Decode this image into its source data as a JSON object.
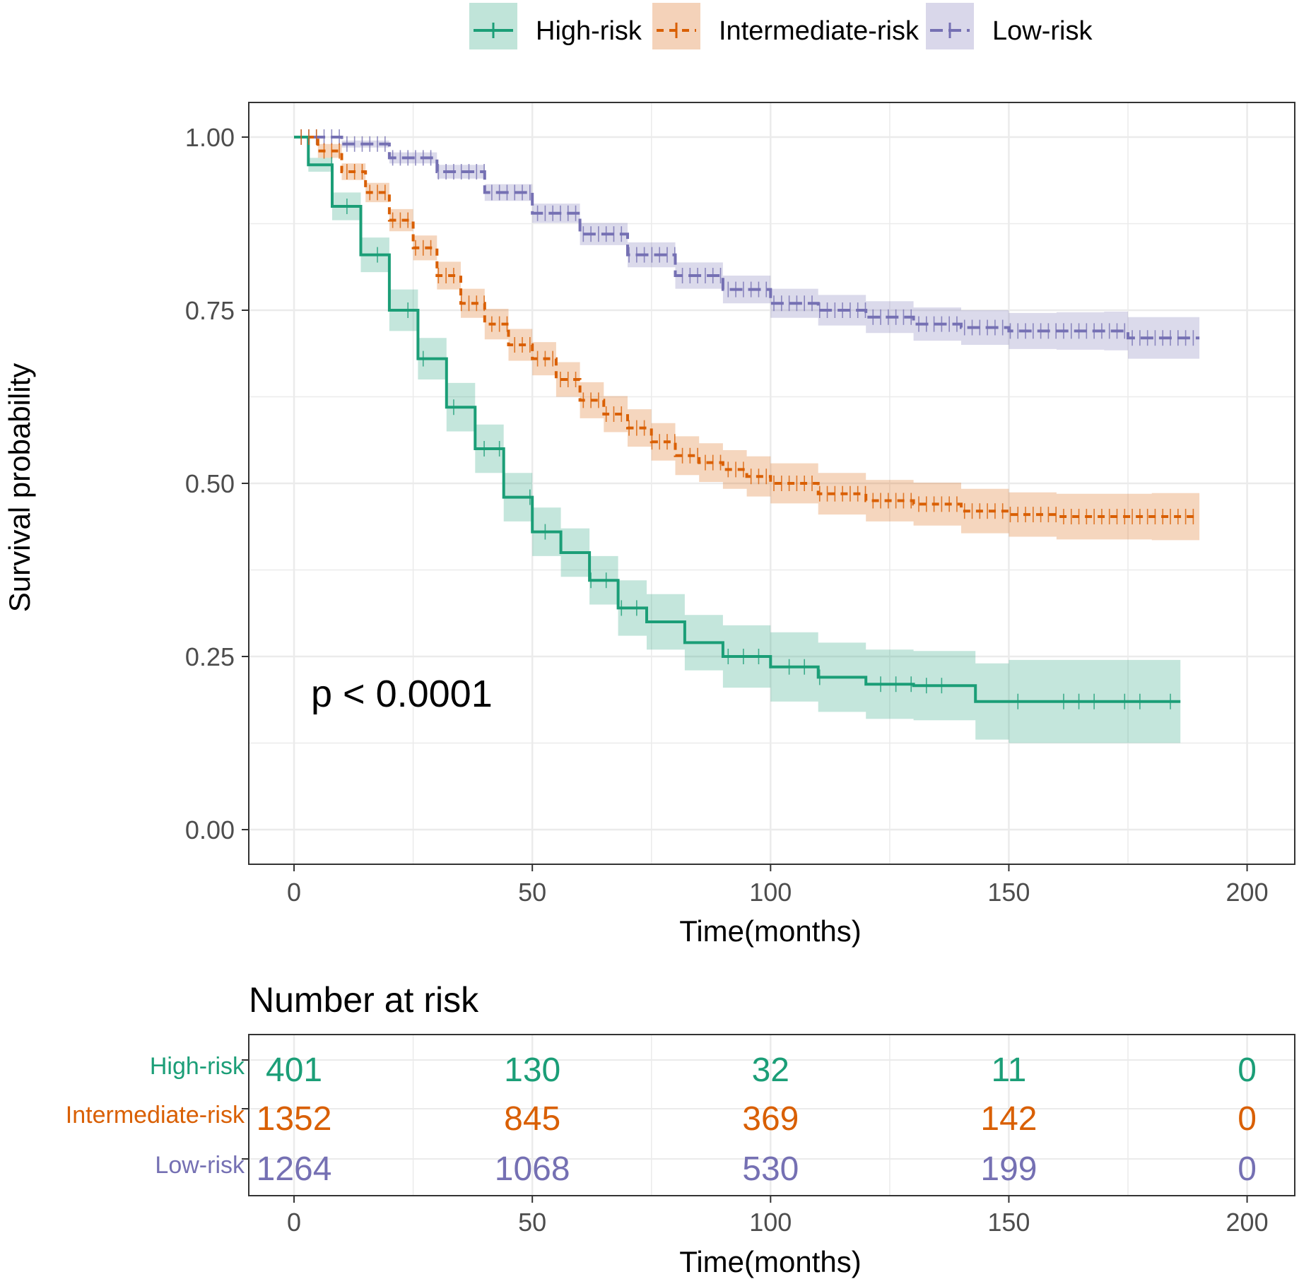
{
  "colors": {
    "high": "#1b9e77",
    "intermediate": "#d95f02",
    "low": "#7570b3",
    "grid": "#ebebeb",
    "axis_text": "#4d4d4d",
    "text": "#000000"
  },
  "legend": {
    "items": [
      {
        "label": "High-risk",
        "series": "high",
        "linetype": "solid"
      },
      {
        "label": "Intermediate-risk",
        "series": "intermediate",
        "linetype": "dashed"
      },
      {
        "label": "Low-risk",
        "series": "low",
        "linetype": "longdash"
      }
    ]
  },
  "chart_data": [
    {
      "type": "line",
      "subtype": "kaplan-meier",
      "xlabel": "Time(months)",
      "ylabel": "Survival probability",
      "xlim": [
        -9.5,
        210
      ],
      "ylim": [
        -0.05,
        1.05
      ],
      "x_ticks": [
        0,
        50,
        100,
        150,
        200
      ],
      "y_ticks": [
        0.0,
        0.25,
        0.5,
        0.75,
        1.0
      ],
      "y_tick_labels": [
        "0.00",
        "0.25",
        "0.50",
        "0.75",
        "1.00"
      ],
      "grid": true,
      "annotation": "p < 0.0001",
      "series": [
        {
          "key": "high",
          "name": "High-risk",
          "linetype": "solid",
          "x": [
            0,
            3,
            8,
            14,
            20,
            26,
            32,
            38,
            44,
            50,
            56,
            62,
            68,
            74,
            82,
            90,
            100,
            110,
            120,
            130,
            141,
            143,
            150,
            160,
            170,
            186
          ],
          "y": [
            1.0,
            0.96,
            0.9,
            0.83,
            0.75,
            0.68,
            0.61,
            0.55,
            0.48,
            0.43,
            0.4,
            0.36,
            0.32,
            0.3,
            0.27,
            0.25,
            0.235,
            0.22,
            0.21,
            0.208,
            0.208,
            0.185,
            0.185,
            0.185,
            0.185,
            0.185
          ],
          "ci_halfwidth": [
            0.0,
            0.01,
            0.02,
            0.025,
            0.03,
            0.03,
            0.035,
            0.035,
            0.035,
            0.035,
            0.035,
            0.035,
            0.04,
            0.04,
            0.04,
            0.045,
            0.05,
            0.05,
            0.05,
            0.05,
            0.05,
            0.055,
            0.06,
            0.06,
            0.06,
            0.065
          ]
        },
        {
          "key": "intermediate",
          "name": "Intermediate-risk",
          "linetype": "dashed",
          "x": [
            0,
            5,
            10,
            15,
            20,
            25,
            30,
            35,
            40,
            45,
            50,
            55,
            60,
            65,
            70,
            75,
            80,
            85,
            90,
            95,
            100,
            110,
            120,
            130,
            140,
            150,
            160,
            170,
            180,
            190
          ],
          "y": [
            1.0,
            0.98,
            0.95,
            0.92,
            0.88,
            0.84,
            0.8,
            0.76,
            0.73,
            0.7,
            0.68,
            0.65,
            0.62,
            0.6,
            0.58,
            0.56,
            0.54,
            0.53,
            0.52,
            0.51,
            0.5,
            0.485,
            0.475,
            0.47,
            0.46,
            0.455,
            0.452,
            0.452,
            0.452,
            0.452
          ],
          "ci_halfwidth": [
            0.0,
            0.01,
            0.012,
            0.014,
            0.016,
            0.018,
            0.02,
            0.021,
            0.022,
            0.023,
            0.024,
            0.025,
            0.026,
            0.026,
            0.027,
            0.027,
            0.028,
            0.028,
            0.028,
            0.029,
            0.029,
            0.03,
            0.03,
            0.031,
            0.032,
            0.032,
            0.033,
            0.033,
            0.034,
            0.034
          ]
        },
        {
          "key": "low",
          "name": "Low-risk",
          "linetype": "longdash",
          "x": [
            0,
            10,
            20,
            30,
            40,
            50,
            60,
            70,
            80,
            90,
            100,
            110,
            120,
            130,
            140,
            150,
            160,
            170,
            175,
            190
          ],
          "y": [
            1.0,
            0.99,
            0.97,
            0.95,
            0.92,
            0.89,
            0.86,
            0.83,
            0.8,
            0.78,
            0.76,
            0.75,
            0.74,
            0.73,
            0.725,
            0.72,
            0.72,
            0.72,
            0.71,
            0.71
          ],
          "ci_halfwidth": [
            0.0,
            0.005,
            0.008,
            0.01,
            0.012,
            0.014,
            0.016,
            0.018,
            0.019,
            0.02,
            0.021,
            0.022,
            0.023,
            0.024,
            0.025,
            0.026,
            0.027,
            0.028,
            0.03,
            0.032
          ]
        }
      ]
    },
    {
      "type": "table",
      "title": "Number at risk",
      "xlabel": "Time(months)",
      "x_ticks": [
        0,
        50,
        100,
        150,
        200
      ],
      "rows": [
        {
          "key": "high",
          "label": "High-risk",
          "values": [
            "401",
            "130",
            "32",
            "11",
            "0"
          ]
        },
        {
          "key": "intermediate",
          "label": "Intermediate-risk",
          "values": [
            "1352",
            "845",
            "369",
            "142",
            "0"
          ]
        },
        {
          "key": "low",
          "label": "Low-risk",
          "values": [
            "1264",
            "1068",
            "530",
            "199",
            "0"
          ]
        }
      ]
    }
  ]
}
